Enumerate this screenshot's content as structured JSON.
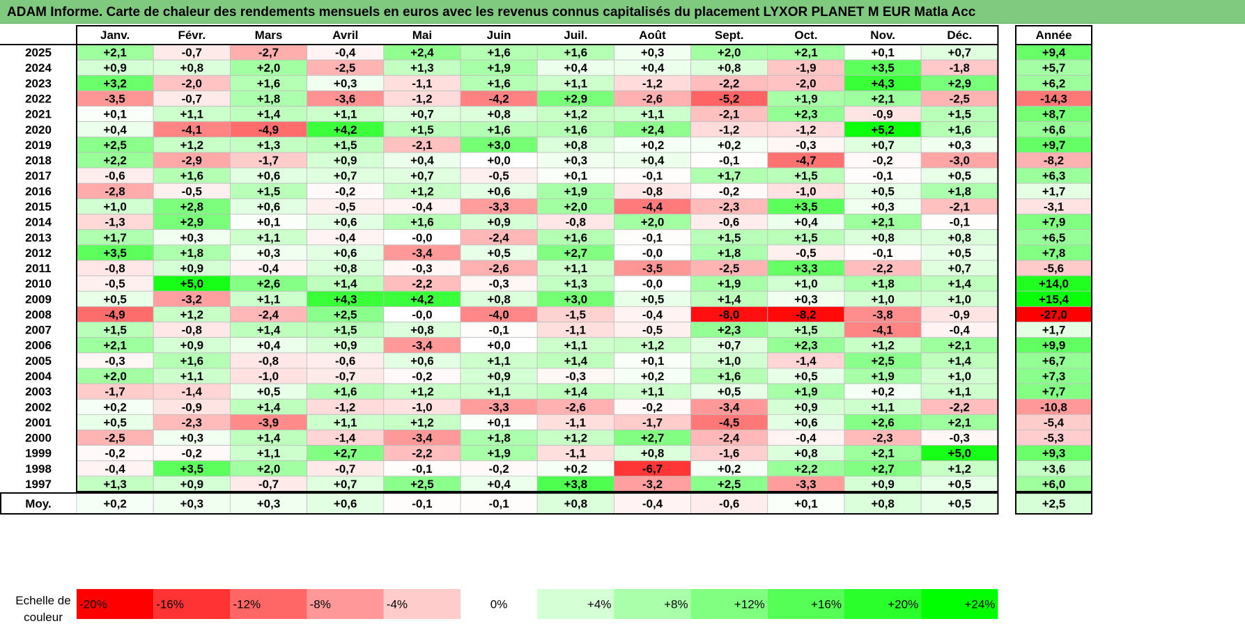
{
  "title": "ADAM Informe. Carte de chaleur des rendements mensuels en euros avec les revenus connus capitalisés du placement LYXOR PLANET M EUR Matla Acc",
  "chart_data": {
    "type": "heatmap",
    "columns": [
      "Janv.",
      "Févr.",
      "Mars",
      "Avril",
      "Mai",
      "Juin",
      "Juil.",
      "Août",
      "Sept.",
      "Oct.",
      "Nov.",
      "Déc."
    ],
    "year_column": "Année",
    "rows": [
      {
        "year": "2025",
        "values": [
          "+2,1",
          "-0,7",
          "-2,7",
          "-0,4",
          "+2,4",
          "+1,6",
          "+1,6",
          "+0,3",
          "+2,0",
          "+2,1",
          "+0,1",
          "+0,7"
        ],
        "annual": "+9,4"
      },
      {
        "year": "2024",
        "values": [
          "+0,9",
          "+0,8",
          "+2,0",
          "-2,5",
          "+1,3",
          "+1,9",
          "+0,4",
          "+0,4",
          "+0,8",
          "-1,9",
          "+3,5",
          "-1,8"
        ],
        "annual": "+5,7"
      },
      {
        "year": "2023",
        "values": [
          "+3,2",
          "-2,0",
          "+1,6",
          "+0,3",
          "-1,1",
          "+1,6",
          "+1,1",
          "-1,2",
          "-2,2",
          "-2,0",
          "+4,3",
          "+2,9"
        ],
        "annual": "+6,2"
      },
      {
        "year": "2022",
        "values": [
          "-3,5",
          "-0,7",
          "+1,8",
          "-3,6",
          "-1,2",
          "-4,2",
          "+2,9",
          "-2,6",
          "-5,2",
          "+1,9",
          "+2,1",
          "-2,5"
        ],
        "annual": "-14,3"
      },
      {
        "year": "2021",
        "values": [
          "+0,1",
          "+1,1",
          "+1,4",
          "+1,1",
          "+0,7",
          "+0,8",
          "+1,2",
          "+1,1",
          "-2,1",
          "+2,3",
          "-0,9",
          "+1,5"
        ],
        "annual": "+8,7"
      },
      {
        "year": "2020",
        "values": [
          "+0,4",
          "-4,1",
          "-4,9",
          "+4,2",
          "+1,5",
          "+1,6",
          "+1,6",
          "+2,4",
          "-1,2",
          "-1,2",
          "+5,2",
          "+1,6"
        ],
        "annual": "+6,6"
      },
      {
        "year": "2019",
        "values": [
          "+2,5",
          "+1,2",
          "+1,3",
          "+1,5",
          "-2,1",
          "+3,0",
          "+0,8",
          "+0,2",
          "+0,2",
          "-0,3",
          "+0,7",
          "+0,3"
        ],
        "annual": "+9,7"
      },
      {
        "year": "2018",
        "values": [
          "+2,2",
          "-2,9",
          "-1,7",
          "+0,9",
          "+0,4",
          "+0,0",
          "+0,3",
          "+0,4",
          "-0,1",
          "-4,7",
          "-0,2",
          "-3,0"
        ],
        "annual": "-8,2"
      },
      {
        "year": "2017",
        "values": [
          "-0,6",
          "+1,6",
          "+0,6",
          "+0,7",
          "+0,7",
          "-0,5",
          "+0,1",
          "-0,1",
          "+1,7",
          "+1,5",
          "-0,1",
          "+0,5"
        ],
        "annual": "+6,3"
      },
      {
        "year": "2016",
        "values": [
          "-2,8",
          "-0,5",
          "+1,5",
          "-0,2",
          "+1,2",
          "+0,6",
          "+1,9",
          "-0,8",
          "-0,2",
          "-1,0",
          "+0,5",
          "+1,8"
        ],
        "annual": "+1,7"
      },
      {
        "year": "2015",
        "values": [
          "+1,0",
          "+2,8",
          "+0,6",
          "-0,5",
          "-0,4",
          "-3,3",
          "+2,0",
          "-4,4",
          "-2,3",
          "+3,5",
          "+0,3",
          "-2,1"
        ],
        "annual": "-3,1"
      },
      {
        "year": "2014",
        "values": [
          "-1,3",
          "+2,9",
          "+0,1",
          "+0,6",
          "+1,6",
          "+0,9",
          "-0,8",
          "+2,0",
          "-0,6",
          "+0,4",
          "+2,1",
          "-0,1"
        ],
        "annual": "+7,9"
      },
      {
        "year": "2013",
        "values": [
          "+1,7",
          "+0,3",
          "+1,1",
          "-0,4",
          "-0,0",
          "-2,4",
          "+1,6",
          "-0,1",
          "+1,5",
          "+1,5",
          "+0,8",
          "+0,8"
        ],
        "annual": "+6,5"
      },
      {
        "year": "2012",
        "values": [
          "+3,5",
          "+1,8",
          "+0,3",
          "+0,6",
          "-3,4",
          "+0,5",
          "+2,7",
          "-0,0",
          "+1,8",
          "-0,5",
          "-0,1",
          "+0,5"
        ],
        "annual": "+7,8"
      },
      {
        "year": "2011",
        "values": [
          "-0,8",
          "+0,9",
          "-0,4",
          "+0,8",
          "-0,3",
          "-2,6",
          "+1,1",
          "-3,5",
          "-2,5",
          "+3,3",
          "-2,2",
          "+0,7"
        ],
        "annual": "-5,6"
      },
      {
        "year": "2010",
        "values": [
          "-0,5",
          "+5,0",
          "+2,6",
          "+1,4",
          "-2,2",
          "-0,3",
          "+1,3",
          "-0,0",
          "+1,9",
          "+1,0",
          "+1,8",
          "+1,4"
        ],
        "annual": "+14,0"
      },
      {
        "year": "2009",
        "values": [
          "+0,5",
          "-3,2",
          "+1,1",
          "+4,3",
          "+4,2",
          "+0,8",
          "+3,0",
          "+0,5",
          "+1,4",
          "+0,3",
          "+1,0",
          "+1,0"
        ],
        "annual": "+15,4"
      },
      {
        "year": "2008",
        "values": [
          "-4,9",
          "+1,2",
          "-2,4",
          "+2,5",
          "-0,0",
          "-4,0",
          "-1,5",
          "-0,4",
          "-8,0",
          "-8,2",
          "-3,8",
          "-0,9"
        ],
        "annual": "-27,0"
      },
      {
        "year": "2007",
        "values": [
          "+1,5",
          "-0,8",
          "+1,4",
          "+1,5",
          "+0,8",
          "-0,1",
          "-1,1",
          "-0,5",
          "+2,3",
          "+1,5",
          "-4,1",
          "-0,4"
        ],
        "annual": "+1,7"
      },
      {
        "year": "2006",
        "values": [
          "+2,1",
          "+0,9",
          "+0,4",
          "+0,9",
          "-3,4",
          "+0,0",
          "+1,1",
          "+1,2",
          "+0,7",
          "+2,3",
          "+1,2",
          "+2,1"
        ],
        "annual": "+9,9"
      },
      {
        "year": "2005",
        "values": [
          "-0,3",
          "+1,6",
          "-0,8",
          "-0,6",
          "+0,6",
          "+1,1",
          "+1,4",
          "+0,1",
          "+1,0",
          "-1,4",
          "+2,5",
          "+1,4"
        ],
        "annual": "+6,7"
      },
      {
        "year": "2004",
        "values": [
          "+2,0",
          "+1,1",
          "-1,0",
          "-0,7",
          "-0,2",
          "+0,9",
          "-0,3",
          "+0,2",
          "+1,6",
          "+0,5",
          "+1,9",
          "+1,0"
        ],
        "annual": "+7,3"
      },
      {
        "year": "2003",
        "values": [
          "-1,7",
          "-1,4",
          "+0,5",
          "+1,6",
          "+1,2",
          "+1,1",
          "+1,4",
          "+1,1",
          "+0,5",
          "+1,9",
          "+0,2",
          "+1,1"
        ],
        "annual": "+7,7"
      },
      {
        "year": "2002",
        "values": [
          "+0,2",
          "-0,9",
          "+1,4",
          "-1,2",
          "-1,0",
          "-3,3",
          "-2,6",
          "-0,2",
          "-3,4",
          "+0,9",
          "+1,1",
          "-2,2"
        ],
        "annual": "-10,8"
      },
      {
        "year": "2001",
        "values": [
          "+0,5",
          "-2,3",
          "-3,9",
          "+1,1",
          "+1,2",
          "+0,1",
          "-1,1",
          "-1,7",
          "-4,5",
          "+0,6",
          "+2,6",
          "+2,1"
        ],
        "annual": "-5,4"
      },
      {
        "year": "2000",
        "values": [
          "-2,5",
          "+0,3",
          "+1,4",
          "-1,4",
          "-3,4",
          "+1,8",
          "+1,2",
          "+2,7",
          "-2,4",
          "-0,4",
          "-2,3",
          "-0,3"
        ],
        "annual": "-5,3"
      },
      {
        "year": "1999",
        "values": [
          "-0,2",
          "-0,2",
          "+1,1",
          "+2,7",
          "-2,2",
          "+1,9",
          "-1,1",
          "+0,8",
          "-1,6",
          "+0,8",
          "+2,1",
          "+5,0"
        ],
        "annual": "+9,3"
      },
      {
        "year": "1998",
        "values": [
          "-0,4",
          "+3,5",
          "+2,0",
          "-0,7",
          "-0,1",
          "-0,2",
          "+0,2",
          "-6,7",
          "+0,2",
          "+2,2",
          "+2,7",
          "+1,2"
        ],
        "annual": "+3,6"
      },
      {
        "year": "1997",
        "values": [
          "+1,3",
          "+0,9",
          "-0,7",
          "+0,7",
          "+2,5",
          "+0,4",
          "+3,8",
          "-3,2",
          "+2,5",
          "-3,3",
          "+0,9",
          "+0,5"
        ],
        "annual": "+6,0"
      }
    ],
    "average": {
      "label": "Moy.",
      "values": [
        "+0,2",
        "+0,3",
        "+0,3",
        "+0,6",
        "-0,1",
        "-0,1",
        "+0,8",
        "-0,4",
        "-0,6",
        "+0,1",
        "+0,8",
        "+0,5"
      ],
      "annual": "+2,5"
    },
    "color_scale": {
      "label": "Echelle de couleur",
      "stops": [
        "-20%",
        "-16%",
        "-12%",
        "-8%",
        "-4%",
        "0%",
        "+4%",
        "+8%",
        "+12%",
        "+16%",
        "+20%",
        "+24%"
      ],
      "values": [
        -20,
        -16,
        -12,
        -8,
        -4,
        0,
        4,
        8,
        12,
        16,
        20,
        24
      ]
    },
    "colors": {
      "negative": "#ff0000",
      "positive": "#00ff00",
      "neutral": "#ffffff",
      "title_bg": "#7fca7f"
    }
  }
}
